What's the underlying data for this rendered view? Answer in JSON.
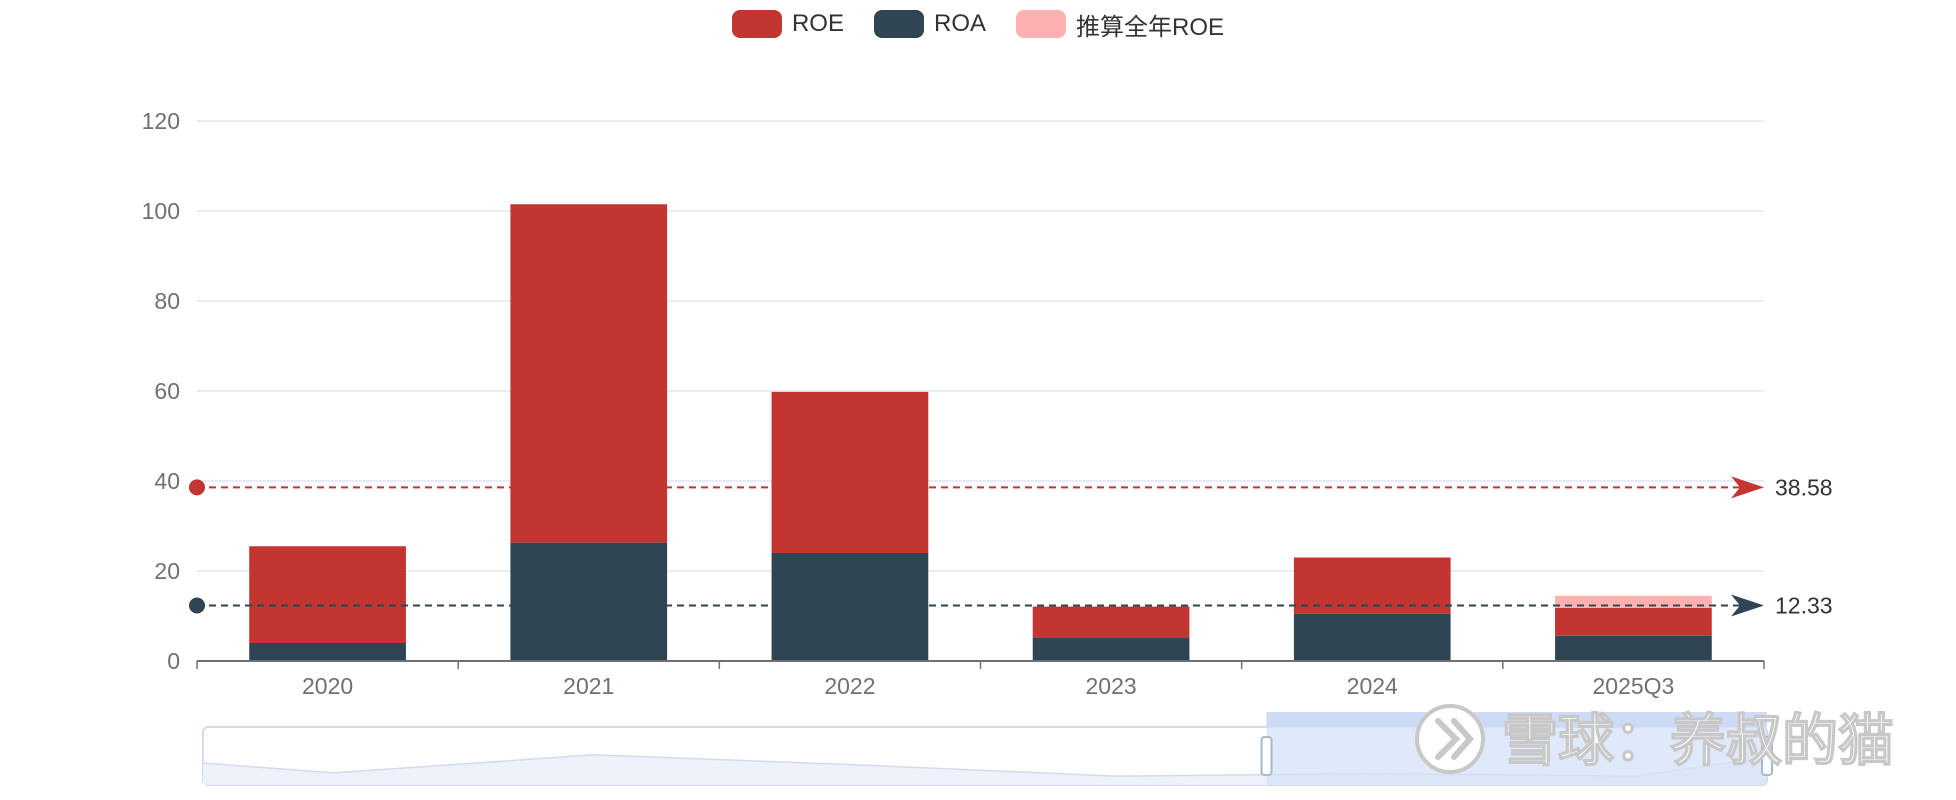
{
  "legend": [
    {
      "name": "ROE",
      "color": "#c23531"
    },
    {
      "name": "ROA",
      "color": "#2f4554"
    },
    {
      "name": "推算全年ROE",
      "color": "#ffb0b0"
    }
  ],
  "chart_data": {
    "type": "bar",
    "stacked": true,
    "categories": [
      "2020",
      "2021",
      "2022",
      "2023",
      "2024",
      "2025Q3"
    ],
    "series": [
      {
        "name": "ROA",
        "color": "#2f4554",
        "values": [
          4.0,
          26.3,
          24.0,
          5.2,
          10.5,
          5.6
        ]
      },
      {
        "name": "ROE",
        "color": "#c23531",
        "values": [
          21.5,
          75.2,
          35.8,
          6.9,
          12.5,
          6.2
        ]
      },
      {
        "name": "推算全年ROE",
        "color": "#ffb0b0",
        "values": [
          0,
          0,
          0,
          0,
          0,
          2.7
        ]
      }
    ],
    "ylim": [
      0,
      120
    ],
    "yticks": [
      0,
      20,
      40,
      60,
      80,
      100,
      120
    ],
    "grid": true,
    "legend_position": "top-center",
    "reference_lines": [
      {
        "value": 38.58,
        "label": "38.58",
        "color": "#c23531",
        "series": "ROE"
      },
      {
        "value": 12.33,
        "label": "12.33",
        "color": "#2f4554",
        "series": "ROA"
      }
    ]
  },
  "data_zoom": {
    "range_start_percent": 68,
    "range_end_percent": 100
  },
  "watermark": "雪球：养叔的猫"
}
